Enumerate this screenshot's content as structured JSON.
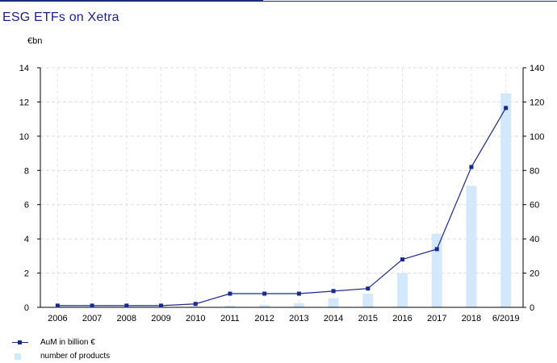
{
  "header": {
    "title": "ESG ETFs on Xetra",
    "unit": "€bn"
  },
  "legend": {
    "aum_label": "AuM in billion €",
    "products_label": "number of products"
  },
  "colors": {
    "line": "#1a2a8c",
    "bar": "#d4e8fb",
    "title": "#1a1f8c"
  },
  "chart_data": {
    "type": "bar+line",
    "title": "ESG ETFs on Xetra",
    "ylabel_left": "€bn",
    "categories": [
      "2006",
      "2007",
      "2008",
      "2009",
      "2010",
      "2011",
      "2012",
      "2013",
      "2014",
      "2015",
      "2016",
      "2017",
      "2018",
      "6/2019"
    ],
    "series": [
      {
        "name": "AuM in billion €",
        "type": "line",
        "axis": "left",
        "values": [
          0.1,
          0.1,
          0.1,
          0.1,
          0.2,
          0.8,
          0.8,
          0.8,
          0.95,
          1.1,
          2.8,
          3.4,
          8.2,
          11.65
        ]
      },
      {
        "name": "number of products",
        "type": "bar",
        "axis": "right",
        "values": [
          0,
          0,
          0,
          0,
          0.5,
          1,
          1.5,
          2.5,
          5.5,
          8,
          20,
          43,
          71,
          125
        ]
      }
    ],
    "ylim_left": [
      0,
      14
    ],
    "ylim_right": [
      0,
      140
    ],
    "yticks_left": [
      0,
      2,
      4,
      6,
      8,
      10,
      12,
      14
    ],
    "yticks_right": [
      0,
      20,
      40,
      60,
      80,
      100,
      120,
      140
    ],
    "grid": true,
    "legend_position": "bottom-left"
  }
}
